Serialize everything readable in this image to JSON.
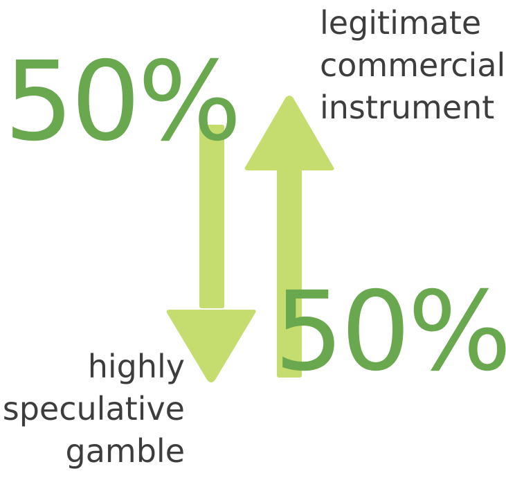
{
  "colors": {
    "arrow": "#c5dc6f",
    "percent": "#6aa84f",
    "text": "#3d3d3d"
  },
  "up_label": {
    "line1": "legitimate",
    "line2": "commercial",
    "line3": "instrument"
  },
  "down_label": {
    "line1": "highly",
    "line2": "speculative",
    "line3": "gamble"
  },
  "top_percent": "50%",
  "bottom_percent": "50%"
}
